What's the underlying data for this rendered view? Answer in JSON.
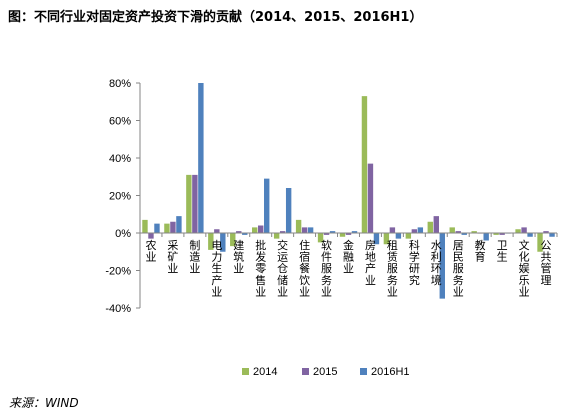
{
  "title": "图：不同行业对固定资产投资下滑的贡献（2014、2015、2016H1）",
  "source": "来源：WIND",
  "chart_data": {
    "type": "bar",
    "categories": [
      "农业",
      "采矿业",
      "制造业",
      "电力生产业",
      "建筑业",
      "批发零售业",
      "交运仓储业",
      "住宿餐饮业",
      "软件服务业",
      "金融业",
      "房地产业",
      "租赁服务业",
      "科学研究",
      "水利环境",
      "居民服务业",
      "教育",
      "卫生",
      "文化娱乐业",
      "公共管理"
    ],
    "series": [
      {
        "name": "2014",
        "color": "#9bbb59",
        "values": [
          7,
          5,
          31,
          -9,
          -7,
          3,
          -3,
          7,
          -5,
          -2,
          73,
          -6,
          -3,
          6,
          3,
          1,
          -1,
          2,
          -10
        ]
      },
      {
        "name": "2015",
        "color": "#8064a2",
        "values": [
          -3,
          6,
          31,
          2,
          1,
          4,
          1,
          3,
          -1,
          -1,
          37,
          3,
          2,
          9,
          1,
          0,
          -1,
          3,
          1
        ]
      },
      {
        "name": "2016H1",
        "color": "#4f81bd",
        "values": [
          5,
          9,
          80,
          -10,
          -1,
          29,
          24,
          3,
          1,
          1,
          -6,
          -3,
          3,
          -35,
          -1,
          -4,
          0,
          -2,
          -2
        ]
      }
    ],
    "ylim": [
      -40,
      80
    ],
    "yticks": [
      -40,
      -20,
      0,
      20,
      40,
      60,
      80
    ],
    "ytick_format": "percent",
    "legend_position": "bottom",
    "grid": false
  }
}
